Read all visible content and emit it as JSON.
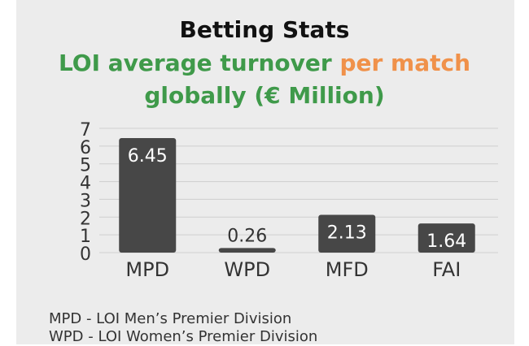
{
  "title": "Betting Stats",
  "subtitle_part1": "LOI average turnover",
  "subtitle_part2": "per match",
  "subtitle_line2": "globally (€ Million)",
  "colors": {
    "bar": "#474747",
    "green": "#3f9a4a",
    "orange": "#f0914a"
  },
  "chart_data": {
    "type": "bar",
    "categories": [
      "MPD",
      "WPD",
      "MFD",
      "FAI"
    ],
    "values": [
      6.45,
      0.26,
      2.13,
      1.64
    ],
    "value_labels": [
      "6.45",
      "0.26",
      "2.13",
      "1.64"
    ],
    "yticks": [
      "0",
      "1",
      "2",
      "3",
      "4",
      "5",
      "6",
      "7"
    ],
    "ylim": [
      0,
      7
    ],
    "grid": true
  },
  "legend": [
    "MPD - LOI Men’s Premier Division",
    "WPD - LOI Women’s Premier Division"
  ]
}
